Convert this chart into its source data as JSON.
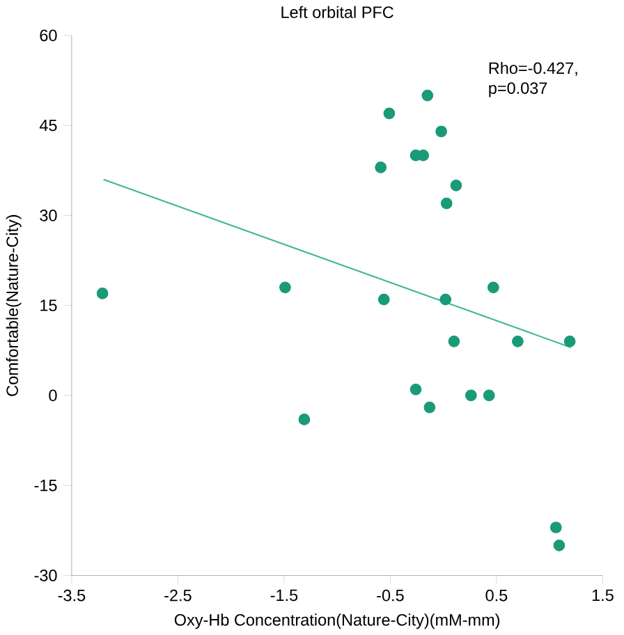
{
  "chart_data": {
    "type": "scatter",
    "title": "Left orbital PFC",
    "xlabel": "Oxy-Hb Concentration(Nature-City)(mM-mm)",
    "ylabel": "Comfortable(Nature-City)",
    "annotations": [
      "Rho=-0.427,\np=0.037"
    ],
    "xlim": [
      -3.5,
      1.5
    ],
    "ylim": [
      -30,
      60
    ],
    "xticks": [
      -3.5,
      -2.5,
      -1.5,
      -0.5,
      0.5,
      1.5
    ],
    "yticks": [
      -30,
      -15,
      0,
      15,
      30,
      45,
      60
    ],
    "marker": "circle",
    "series": [
      {
        "color": "#1a9a78",
        "x": [
          -3.21,
          -1.49,
          -1.31,
          -0.59,
          -0.51,
          -0.56,
          -0.26,
          -0.19,
          -0.15,
          -0.02,
          0.12,
          0.03,
          0.02,
          0.47,
          0.1,
          0.7,
          1.19,
          -0.26,
          -0.13,
          0.26,
          0.43,
          1.06,
          1.09
        ],
        "values": [
          17,
          18,
          -4,
          38,
          47,
          16,
          40,
          40,
          50,
          44,
          35,
          32,
          16,
          18,
          9,
          9,
          9,
          1,
          -2,
          0,
          0,
          -22,
          -25
        ]
      },
      {
        "type": "line",
        "color": "#3cb89c",
        "marker": "none",
        "x": [
          -3.2,
          1.2
        ],
        "values": [
          36,
          8
        ]
      }
    ]
  }
}
